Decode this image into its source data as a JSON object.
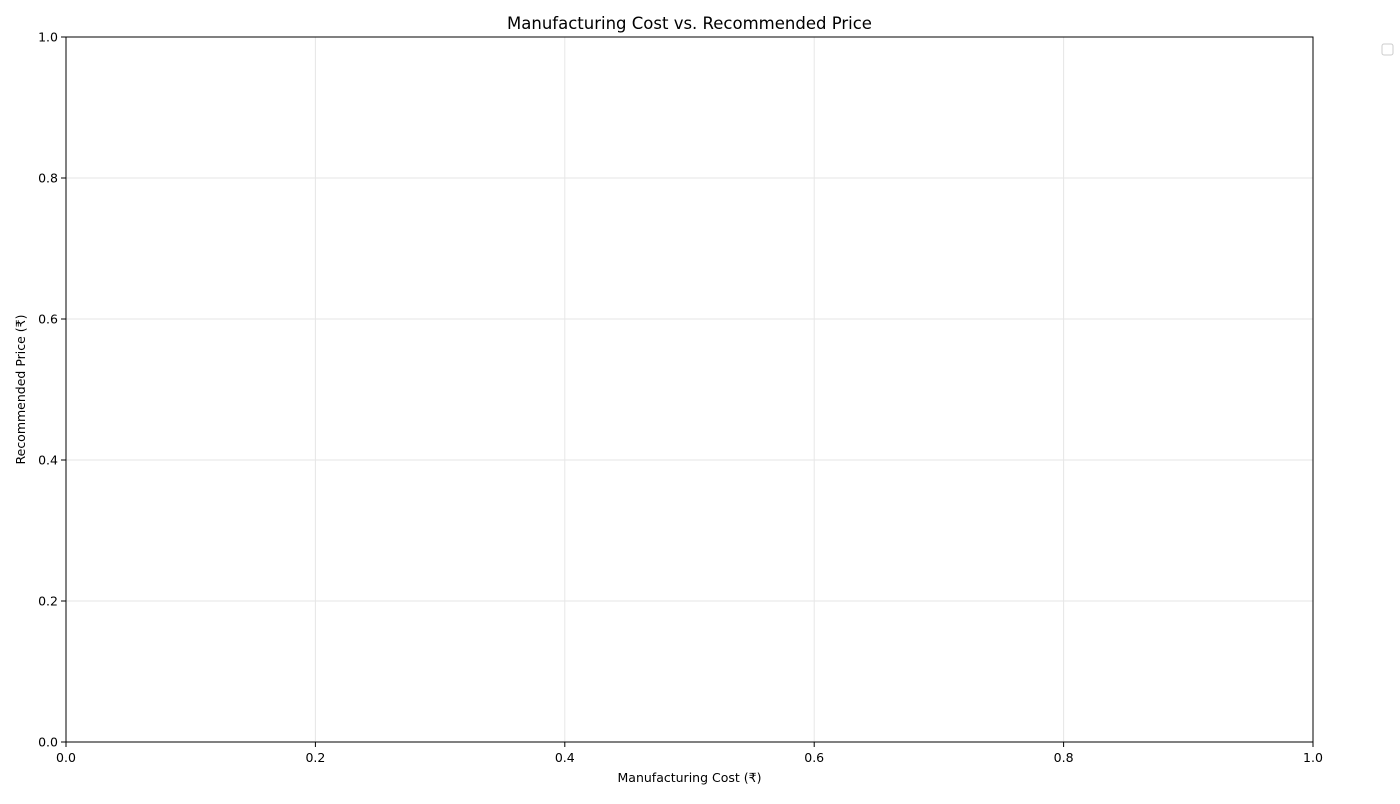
{
  "chart_data": {
    "type": "scatter",
    "title": "Manufacturing Cost vs. Recommended Price",
    "xlabel": "Manufacturing Cost (₹)",
    "ylabel": "Recommended Price (₹)",
    "xlim": [
      0,
      1
    ],
    "ylim": [
      0,
      1
    ],
    "xticks": [
      "0.0",
      "0.2",
      "0.4",
      "0.6",
      "0.8",
      "1.0"
    ],
    "yticks": [
      "0.0",
      "0.2",
      "0.4",
      "0.6",
      "0.8",
      "1.0"
    ],
    "grid": true,
    "legend": {
      "placement": "outside-top-right",
      "entries": []
    },
    "series": []
  }
}
